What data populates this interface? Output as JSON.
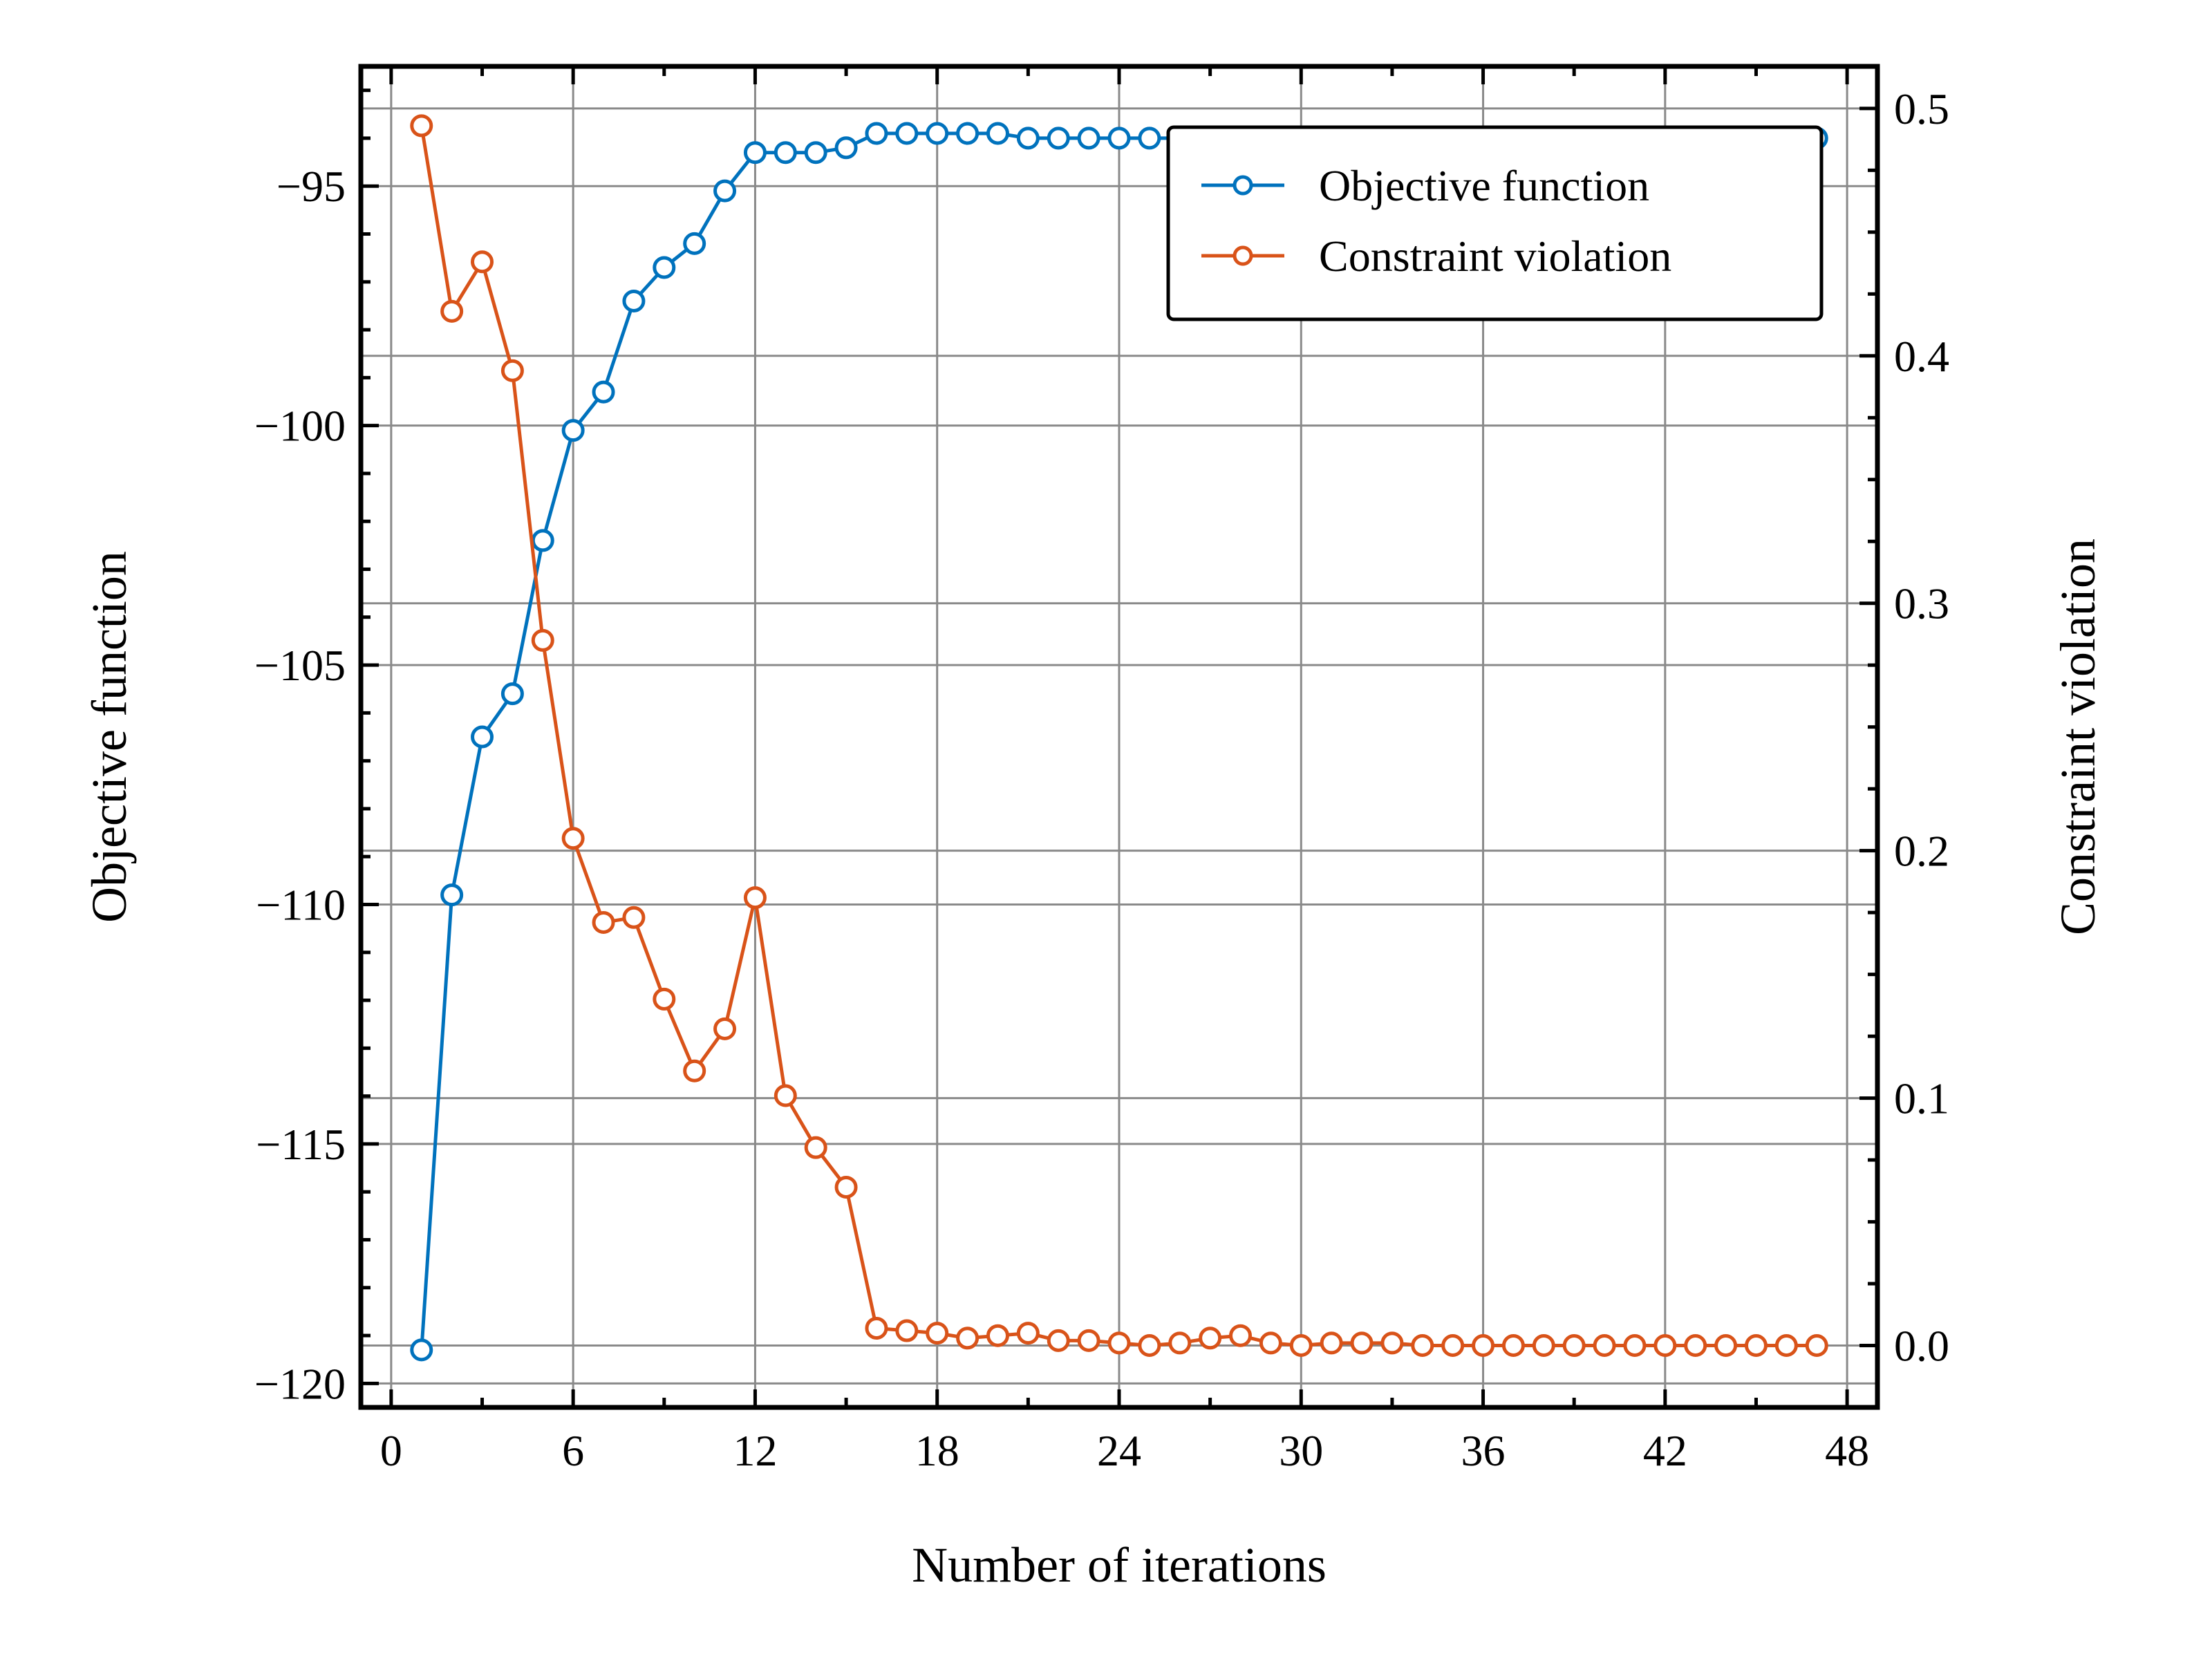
{
  "chart_data": {
    "type": "line",
    "xlabel": "Number of iterations",
    "ylabel": "Objective function",
    "y2label": "Constraint violation",
    "xlim": [
      -1,
      49
    ],
    "xticks": [
      0,
      6,
      12,
      18,
      24,
      30,
      36,
      42,
      48
    ],
    "ylim": [
      -120.5,
      -92.5
    ],
    "yticks": [
      -120,
      -115,
      -110,
      -105,
      -100,
      -95
    ],
    "y2lim": [
      -0.025,
      0.517
    ],
    "y2ticks": [
      0.0,
      0.1,
      0.2,
      0.3,
      0.4,
      0.5
    ],
    "grid": true,
    "legend_position": "top-right",
    "x": [
      1,
      2,
      3,
      4,
      5,
      6,
      7,
      8,
      9,
      10,
      11,
      12,
      13,
      14,
      15,
      16,
      17,
      18,
      19,
      20,
      21,
      22,
      23,
      24,
      25,
      26,
      27,
      28,
      29,
      30,
      31,
      32,
      33,
      34,
      35,
      36,
      37,
      38,
      39,
      40,
      41,
      42,
      43,
      44,
      45,
      46,
      47
    ],
    "series": [
      {
        "name": "Objective function",
        "axis": "left",
        "color": "#0072BD",
        "values": [
          -119.3,
          -109.8,
          -106.5,
          -105.6,
          -102.4,
          -100.1,
          -99.3,
          -97.4,
          -96.7,
          -96.2,
          -95.1,
          -94.3,
          -94.3,
          -94.3,
          -94.2,
          -93.9,
          -93.9,
          -93.9,
          -93.9,
          -93.9,
          -94.0,
          -94.0,
          -94.0,
          -94.0,
          -94.0,
          -94.0,
          -94.0,
          -94.0,
          -94.0,
          -94.0,
          -94.0,
          -94.0,
          -94.0,
          -94.0,
          -94.0,
          -94.0,
          -94.0,
          -94.0,
          -94.0,
          -94.0,
          -94.0,
          -94.0,
          -94.0,
          -94.0,
          -94.0,
          -94.0,
          -94.0
        ]
      },
      {
        "name": "Constraint violation",
        "axis": "right",
        "color": "#D95319",
        "values": [
          0.493,
          0.418,
          0.438,
          0.394,
          0.285,
          0.205,
          0.171,
          0.173,
          0.14,
          0.111,
          0.128,
          0.181,
          0.101,
          0.08,
          0.064,
          0.007,
          0.006,
          0.005,
          0.003,
          0.004,
          0.005,
          0.002,
          0.002,
          0.001,
          0.0,
          0.001,
          0.003,
          0.004,
          0.001,
          0.0,
          0.001,
          0.001,
          0.001,
          0.0,
          0.0,
          0.0,
          0.0,
          0.0,
          0.0,
          0.0,
          0.0,
          0.0,
          0.0,
          0.0,
          0.0,
          0.0,
          0.0
        ]
      }
    ]
  }
}
